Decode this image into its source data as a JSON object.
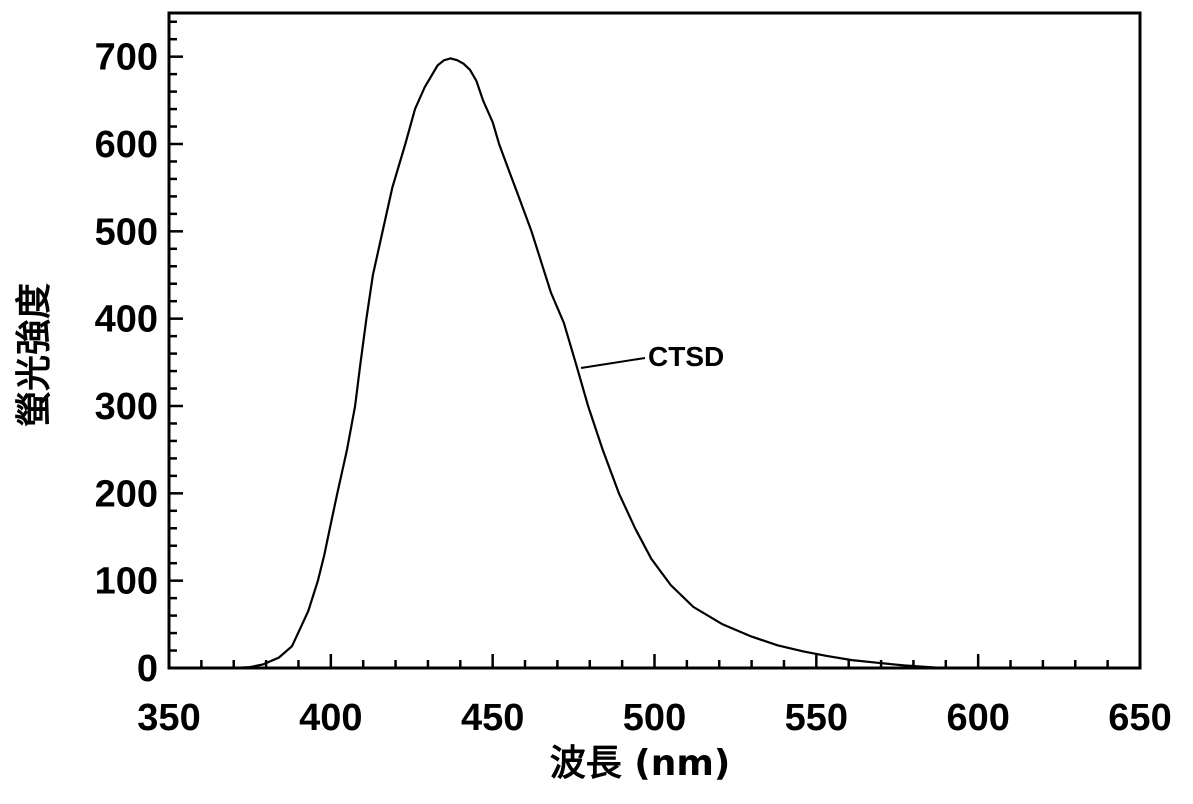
{
  "chart_data": {
    "type": "line",
    "title": "",
    "xlabel": "波長 (nm)",
    "ylabel": "螢光強度",
    "xlim": [
      350,
      650
    ],
    "ylim": [
      0,
      750
    ],
    "x_ticks": [
      350,
      400,
      450,
      500,
      550,
      600,
      650
    ],
    "y_ticks": [
      0,
      100,
      200,
      300,
      400,
      500,
      600,
      700
    ],
    "x_minor_step": 10,
    "y_minor_step": 20,
    "grid": false,
    "line_color": "#000000",
    "annotation": "CTSD",
    "series": [
      {
        "x": [
          350,
          370,
          375,
          379,
          384,
          388,
          390,
          393,
          396,
          398,
          400,
          402,
          405,
          407.5,
          409,
          411,
          413,
          416,
          419,
          423,
          426,
          429,
          433,
          435,
          437,
          439,
          441,
          443,
          445,
          447,
          450,
          452,
          455,
          458,
          462,
          465,
          468,
          472,
          476,
          479.5,
          484,
          489,
          494,
          499,
          505,
          512,
          521,
          530,
          538,
          546,
          553,
          561,
          569,
          577,
          583,
          589,
          600,
          650
        ],
        "y": [
          0,
          0,
          1,
          4,
          12,
          25,
          41,
          65,
          100,
          130,
          165,
          200,
          250,
          300,
          345,
          400,
          450,
          500,
          550,
          600,
          640,
          665,
          690,
          696,
          698,
          696,
          692,
          685,
          672,
          650,
          625,
          600,
          570,
          540,
          500,
          465,
          430,
          395,
          345,
          300,
          250,
          200,
          160,
          125,
          95,
          70,
          50,
          36,
          26,
          19,
          14,
          9,
          6,
          3,
          1.5,
          0,
          0,
          0
        ]
      }
    ]
  }
}
